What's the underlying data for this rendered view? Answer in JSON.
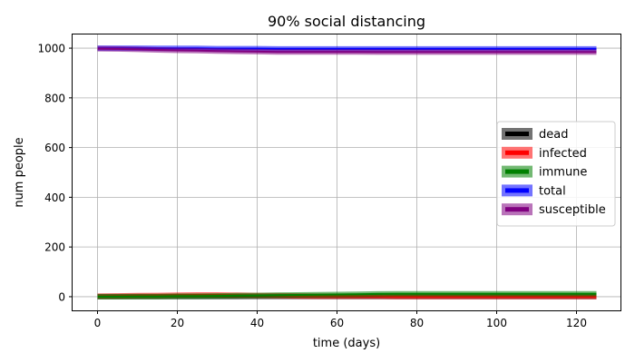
{
  "chart_data": {
    "type": "line",
    "title": "90% social distancing",
    "xlabel": "time (days)",
    "ylabel": "num people",
    "xlim": [
      -6.25,
      131.25
    ],
    "ylim": [
      -55,
      1055
    ],
    "xticks": [
      0,
      20,
      40,
      60,
      80,
      100,
      120
    ],
    "yticks": [
      0,
      200,
      400,
      600,
      800,
      1000
    ],
    "grid": true,
    "legend_position": "center-right",
    "x": [
      0,
      5,
      10,
      15,
      20,
      25,
      30,
      35,
      40,
      45,
      50,
      55,
      60,
      65,
      70,
      75,
      80,
      85,
      90,
      95,
      100,
      105,
      110,
      115,
      120,
      125
    ],
    "series": [
      {
        "name": "dead",
        "color": "#000000",
        "values": [
          0,
          0,
          0,
          0,
          0,
          0,
          0,
          0,
          1,
          1,
          1,
          1,
          1,
          1,
          1,
          1,
          1,
          1,
          1,
          1,
          1,
          1,
          1,
          1,
          1,
          1
        ]
      },
      {
        "name": "infected",
        "color": "#ff0000",
        "values": [
          2,
          3,
          4,
          5,
          6,
          7,
          7,
          6,
          5,
          4,
          3,
          2,
          2,
          2,
          2,
          1,
          1,
          1,
          1,
          1,
          1,
          1,
          1,
          1,
          1,
          1
        ]
      },
      {
        "name": "immune",
        "color": "#008000",
        "values": [
          0,
          0,
          1,
          1,
          2,
          2,
          3,
          4,
          5,
          6,
          7,
          8,
          9,
          10,
          11,
          12,
          12,
          12,
          12,
          12,
          12,
          12,
          12,
          12,
          12,
          12
        ]
      },
      {
        "name": "total",
        "color": "#0000ff",
        "values": [
          1000,
          1000,
          1000,
          999,
          999,
          999,
          998,
          998,
          998,
          997,
          997,
          997,
          997,
          997,
          997,
          997,
          997,
          997,
          997,
          997,
          997,
          997,
          997,
          997,
          997,
          997
        ]
      },
      {
        "name": "susceptible",
        "color": "#800080",
        "values": [
          998,
          997,
          995,
          993,
          991,
          990,
          988,
          987,
          986,
          985,
          985,
          985,
          985,
          985,
          984,
          984,
          984,
          984,
          984,
          984,
          984,
          984,
          984,
          984,
          984,
          984
        ]
      }
    ]
  }
}
